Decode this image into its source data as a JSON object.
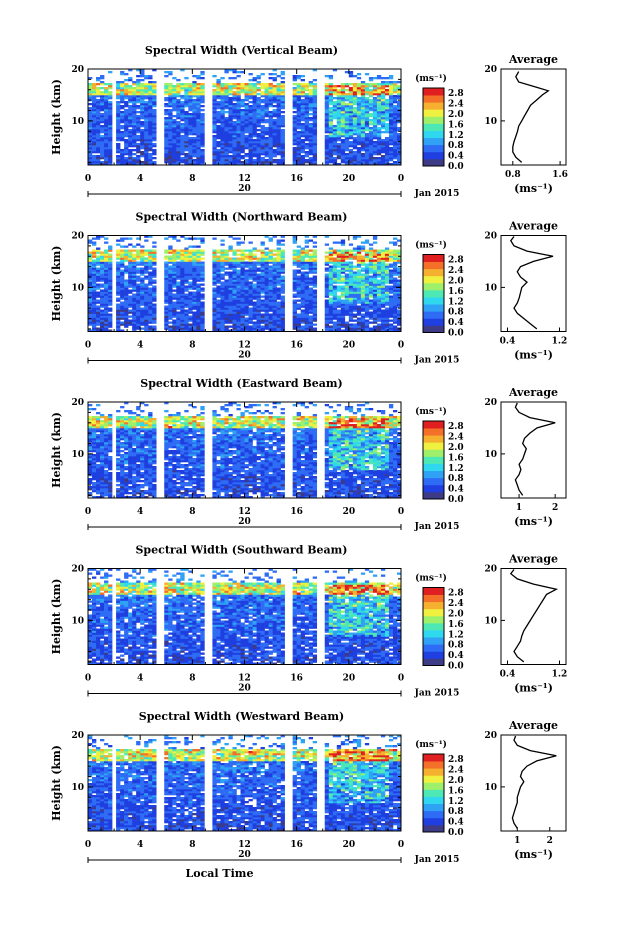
{
  "chart_data": {
    "type": "heatmap",
    "shared": {
      "time_ticks": [
        "0",
        "4",
        "8",
        "12",
        "16",
        "20",
        "0"
      ],
      "time_range_hours": [
        0,
        24
      ],
      "date_day": "20",
      "date_label": "Jan 2015",
      "xlabel": "Local Time",
      "ylabel": "Height (km)",
      "height_ticks": [
        "20",
        "10"
      ],
      "height_range_km": [
        1.5,
        20
      ],
      "colorbar_unit": "(ms⁻¹)",
      "colorbar_ticks": [
        "2.8",
        "2.4",
        "2.0",
        "1.6",
        "1.2",
        "0.8",
        "0.4",
        "0.0"
      ],
      "colorbar_range": [
        0,
        3.0
      ],
      "average_title": "Average",
      "average_xlabel": "(ms⁻¹)",
      "data_gaps_hours": [
        [
          1.8,
          2.2
        ],
        [
          5.3,
          5.8
        ],
        [
          8.9,
          9.4
        ],
        [
          15.2,
          15.6
        ],
        [
          17.6,
          18.0
        ]
      ],
      "colors": [
        "#3d3a86",
        "#1f3fe0",
        "#2f6cf5",
        "#2fa2f5",
        "#2fd8ee",
        "#4de8b4",
        "#9ef06a",
        "#f0f040",
        "#f6b030",
        "#f47028",
        "#e02020"
      ]
    },
    "panels": [
      {
        "title": "Spectral Width (Vertical Beam)",
        "average_ticks": [
          {
            "label": "0.8",
            "value": 0.8
          },
          {
            "label": "1.6",
            "value": 1.6
          }
        ],
        "average_range": [
          0.6,
          1.7
        ],
        "average_profile": [
          [
            0.95,
            2
          ],
          [
            0.85,
            3
          ],
          [
            0.8,
            4
          ],
          [
            0.8,
            5
          ],
          [
            0.82,
            6
          ],
          [
            0.85,
            7
          ],
          [
            0.88,
            8
          ],
          [
            0.9,
            9
          ],
          [
            0.95,
            10
          ],
          [
            1.0,
            11
          ],
          [
            1.05,
            12
          ],
          [
            1.1,
            13
          ],
          [
            1.2,
            14
          ],
          [
            1.3,
            15
          ],
          [
            1.4,
            15.8
          ],
          [
            1.2,
            16.5
          ],
          [
            0.9,
            17.5
          ],
          [
            0.85,
            18.5
          ],
          [
            0.9,
            19.5
          ]
        ]
      },
      {
        "title": "Spectral Width (Northward Beam)",
        "average_ticks": [
          {
            "label": "0.4",
            "value": 0.4
          },
          {
            "label": "1.2",
            "value": 1.2
          }
        ],
        "average_range": [
          0.3,
          1.3
        ],
        "average_profile": [
          [
            0.85,
            2
          ],
          [
            0.75,
            3
          ],
          [
            0.65,
            4
          ],
          [
            0.55,
            5
          ],
          [
            0.5,
            6
          ],
          [
            0.55,
            7
          ],
          [
            0.58,
            8
          ],
          [
            0.6,
            9
          ],
          [
            0.62,
            10
          ],
          [
            0.7,
            11
          ],
          [
            0.6,
            12
          ],
          [
            0.55,
            13
          ],
          [
            0.6,
            14
          ],
          [
            0.8,
            15
          ],
          [
            1.1,
            16
          ],
          [
            0.7,
            17
          ],
          [
            0.5,
            18
          ],
          [
            0.45,
            19
          ],
          [
            0.5,
            19.8
          ]
        ]
      },
      {
        "title": "Spectral Width (Eastward Beam)",
        "average_ticks": [
          {
            "label": "1",
            "value": 1
          },
          {
            "label": "2",
            "value": 2
          }
        ],
        "average_range": [
          0.5,
          2.3
        ],
        "average_profile": [
          [
            1.1,
            2
          ],
          [
            1.0,
            3
          ],
          [
            0.95,
            4
          ],
          [
            0.9,
            5
          ],
          [
            1.0,
            6
          ],
          [
            1.05,
            7
          ],
          [
            1.0,
            8
          ],
          [
            1.1,
            9
          ],
          [
            1.15,
            10
          ],
          [
            1.2,
            11
          ],
          [
            1.1,
            12
          ],
          [
            1.15,
            13
          ],
          [
            1.3,
            14
          ],
          [
            1.5,
            15
          ],
          [
            2.0,
            16
          ],
          [
            1.3,
            17
          ],
          [
            1.0,
            18
          ],
          [
            0.9,
            19
          ],
          [
            0.95,
            19.8
          ]
        ]
      },
      {
        "title": "Spectral Width (Southward Beam)",
        "average_ticks": [
          {
            "label": "0.4",
            "value": 0.4
          },
          {
            "label": "1.2",
            "value": 1.2
          }
        ],
        "average_range": [
          0.3,
          1.3
        ],
        "average_profile": [
          [
            0.65,
            2
          ],
          [
            0.55,
            3
          ],
          [
            0.5,
            4
          ],
          [
            0.55,
            5
          ],
          [
            0.6,
            6
          ],
          [
            0.62,
            7
          ],
          [
            0.65,
            8
          ],
          [
            0.7,
            9
          ],
          [
            0.75,
            10
          ],
          [
            0.8,
            11
          ],
          [
            0.85,
            12
          ],
          [
            0.9,
            13
          ],
          [
            0.95,
            14
          ],
          [
            1.0,
            15
          ],
          [
            1.15,
            16
          ],
          [
            0.8,
            17
          ],
          [
            0.55,
            18
          ],
          [
            0.45,
            19
          ],
          [
            0.5,
            19.8
          ]
        ]
      },
      {
        "title": "Spectral Width (Westward Beam)",
        "average_ticks": [
          {
            "label": "1",
            "value": 1
          },
          {
            "label": "2",
            "value": 2
          }
        ],
        "average_range": [
          0.5,
          2.5
        ],
        "average_profile": [
          [
            1.0,
            2
          ],
          [
            0.9,
            3
          ],
          [
            0.85,
            4
          ],
          [
            0.9,
            5
          ],
          [
            0.95,
            6
          ],
          [
            1.0,
            7
          ],
          [
            1.0,
            8
          ],
          [
            1.05,
            9
          ],
          [
            1.1,
            10
          ],
          [
            1.2,
            11
          ],
          [
            1.1,
            12
          ],
          [
            1.15,
            13
          ],
          [
            1.3,
            14
          ],
          [
            1.6,
            15
          ],
          [
            2.2,
            16
          ],
          [
            1.4,
            17
          ],
          [
            1.0,
            18
          ],
          [
            0.9,
            19
          ],
          [
            0.95,
            19.8
          ]
        ]
      }
    ]
  }
}
